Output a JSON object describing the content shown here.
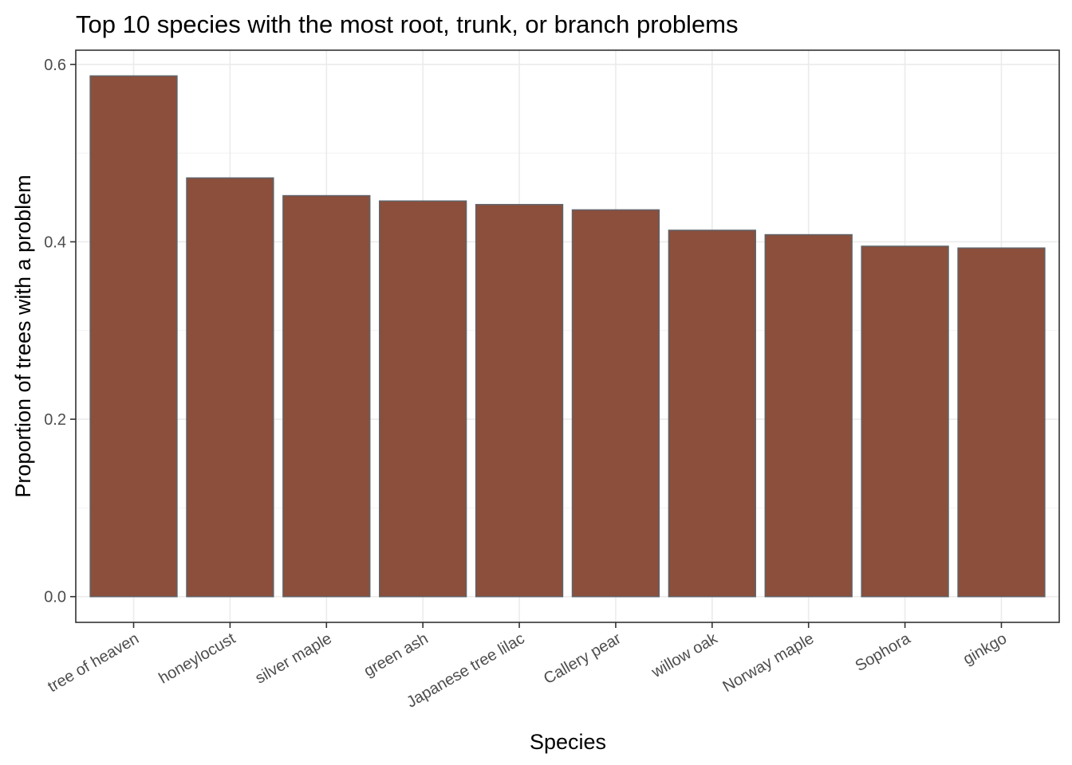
{
  "chart_data": {
    "type": "bar",
    "title": "Top 10 species with the most root, trunk, or branch problems",
    "xlabel": "Species",
    "ylabel": "Proportion of trees with a problem",
    "categories": [
      "tree of heaven",
      "honeylocust",
      "silver maple",
      "green ash",
      "Japanese tree lilac",
      "Callery pear",
      "willow oak",
      "Norway maple",
      "Sophora",
      "ginkgo"
    ],
    "values": [
      0.587,
      0.472,
      0.452,
      0.446,
      0.442,
      0.436,
      0.413,
      0.408,
      0.395,
      0.393
    ],
    "ylim": [
      -0.029,
      0.616
    ],
    "yticks": [
      0.0,
      0.2,
      0.4,
      0.6
    ],
    "ytick_labels": [
      "0.0",
      "0.2",
      "0.4",
      "0.6"
    ],
    "grid": true,
    "bar_color": "#8B4F3C",
    "bar_outline": "#5F6368"
  }
}
